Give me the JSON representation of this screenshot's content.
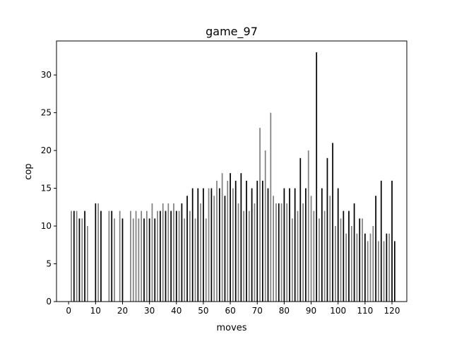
{
  "chart_data": {
    "type": "bar",
    "title": "game_97",
    "xlabel": "moves",
    "ylabel": "cop",
    "xlim": [
      -4.5,
      125.5
    ],
    "ylim": [
      0,
      34.5
    ],
    "xticks": [
      0,
      10,
      20,
      30,
      40,
      50,
      60,
      70,
      80,
      90,
      100,
      110,
      120
    ],
    "yticks": [
      0,
      5,
      10,
      15,
      20,
      25,
      30
    ],
    "grid": false,
    "colors": {
      "dark": "#000000",
      "light": "#808080"
    },
    "x": [
      1,
      2,
      3,
      4,
      5,
      6,
      7,
      10,
      11,
      12,
      15,
      16,
      17,
      19,
      20,
      23,
      24,
      25,
      26,
      27,
      28,
      29,
      30,
      31,
      32,
      33,
      34,
      35,
      36,
      37,
      38,
      39,
      40,
      41,
      42,
      43,
      44,
      45,
      46,
      47,
      48,
      49,
      50,
      51,
      52,
      53,
      54,
      55,
      56,
      57,
      58,
      59,
      60,
      61,
      62,
      63,
      64,
      65,
      66,
      67,
      68,
      69,
      70,
      71,
      72,
      73,
      74,
      75,
      76,
      77,
      78,
      79,
      80,
      81,
      82,
      83,
      84,
      85,
      86,
      87,
      88,
      89,
      90,
      91,
      92,
      93,
      94,
      95,
      96,
      97,
      98,
      99,
      100,
      101,
      102,
      103,
      104,
      105,
      106,
      107,
      108,
      109,
      110,
      111,
      112,
      113,
      114,
      115,
      116,
      117,
      118,
      119,
      120,
      121
    ],
    "values": [
      12,
      12,
      12,
      11,
      11,
      12,
      10,
      13,
      13,
      12,
      12,
      12,
      11,
      12,
      11,
      12,
      11,
      12,
      11,
      12,
      11,
      12,
      11,
      13,
      11,
      12,
      12,
      13,
      12,
      13,
      12,
      13,
      12,
      12,
      13,
      11,
      14,
      12,
      15,
      11,
      15,
      13,
      15,
      11,
      15,
      15,
      14,
      16,
      15,
      17,
      14,
      16,
      17,
      15,
      16,
      13,
      17,
      12,
      16,
      12,
      15,
      13,
      16,
      23,
      16,
      20,
      15,
      25,
      14,
      13,
      13,
      13,
      15,
      13,
      15,
      11,
      15,
      12,
      19,
      13,
      15,
      20,
      14,
      12,
      33,
      11,
      15,
      12,
      19,
      14,
      21,
      10,
      15,
      11,
      12,
      9,
      12,
      10,
      13,
      9,
      11,
      11,
      9,
      8,
      9,
      10,
      14,
      8,
      16,
      8,
      9,
      9,
      16,
      8
    ],
    "shades": [
      "light",
      "dark",
      "light",
      "dark",
      "light",
      "dark",
      "light",
      "dark",
      "light",
      "dark",
      "light",
      "dark",
      "light",
      "light",
      "dark",
      "light",
      "light",
      "light",
      "light",
      "light",
      "dark",
      "light",
      "dark",
      "light",
      "dark",
      "light",
      "dark",
      "light",
      "dark",
      "light",
      "dark",
      "light",
      "dark",
      "light",
      "dark",
      "light",
      "dark",
      "light",
      "dark",
      "light",
      "dark",
      "light",
      "dark",
      "light",
      "light",
      "dark",
      "light",
      "light",
      "dark",
      "light",
      "dark",
      "light",
      "dark",
      "light",
      "dark",
      "light",
      "dark",
      "light",
      "dark",
      "light",
      "dark",
      "light",
      "dark",
      "light",
      "dark",
      "light",
      "dark",
      "light",
      "light",
      "light",
      "dark",
      "light",
      "dark",
      "light",
      "dark",
      "light",
      "dark",
      "light",
      "dark",
      "light",
      "dark",
      "light",
      "light",
      "light",
      "dark",
      "light",
      "dark",
      "light",
      "dark",
      "light",
      "dark",
      "light",
      "dark",
      "light",
      "dark",
      "light",
      "dark",
      "light",
      "dark",
      "light",
      "dark",
      "light",
      "dark",
      "light",
      "light",
      "light",
      "dark",
      "light",
      "dark",
      "light",
      "dark",
      "light"
    ]
  }
}
